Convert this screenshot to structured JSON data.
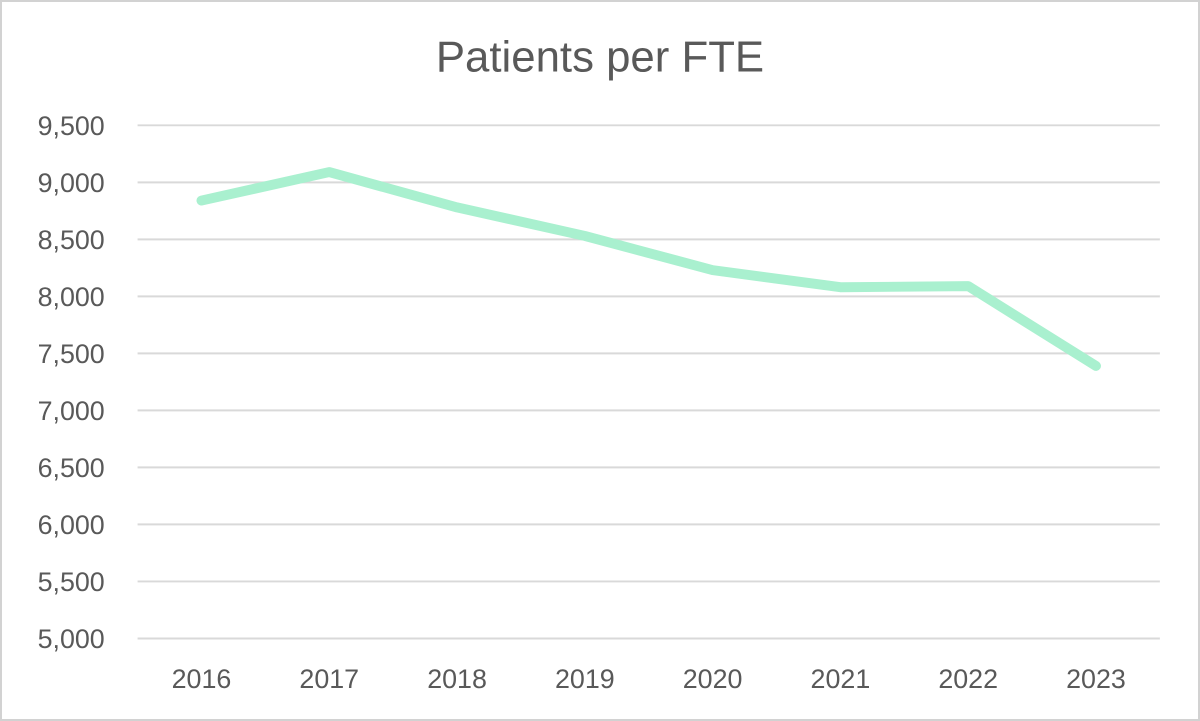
{
  "chart_data": {
    "type": "line",
    "title": "Patients per FTE",
    "categories": [
      "2016",
      "2017",
      "2018",
      "2019",
      "2020",
      "2021",
      "2022",
      "2023"
    ],
    "series": [
      {
        "name": "Patients per FTE",
        "values": [
          8840,
          9090,
          8780,
          8530,
          8230,
          8080,
          8090,
          7390
        ]
      }
    ],
    "xlabel": "",
    "ylabel": "",
    "ylim": [
      5000,
      9500
    ],
    "ytick_step": 500,
    "ytick_labels": [
      "5,000",
      "5,500",
      "6,000",
      "6,500",
      "7,000",
      "7,500",
      "8,000",
      "8,500",
      "9,000",
      "9,500"
    ],
    "grid": "horizontal-only",
    "legend_position": "none",
    "colors": {
      "line": "#a9f0cf",
      "gridline": "#d9d9d9",
      "text": "#595959",
      "frame_border": "#d2d2d2",
      "background": "#ffffff"
    }
  }
}
